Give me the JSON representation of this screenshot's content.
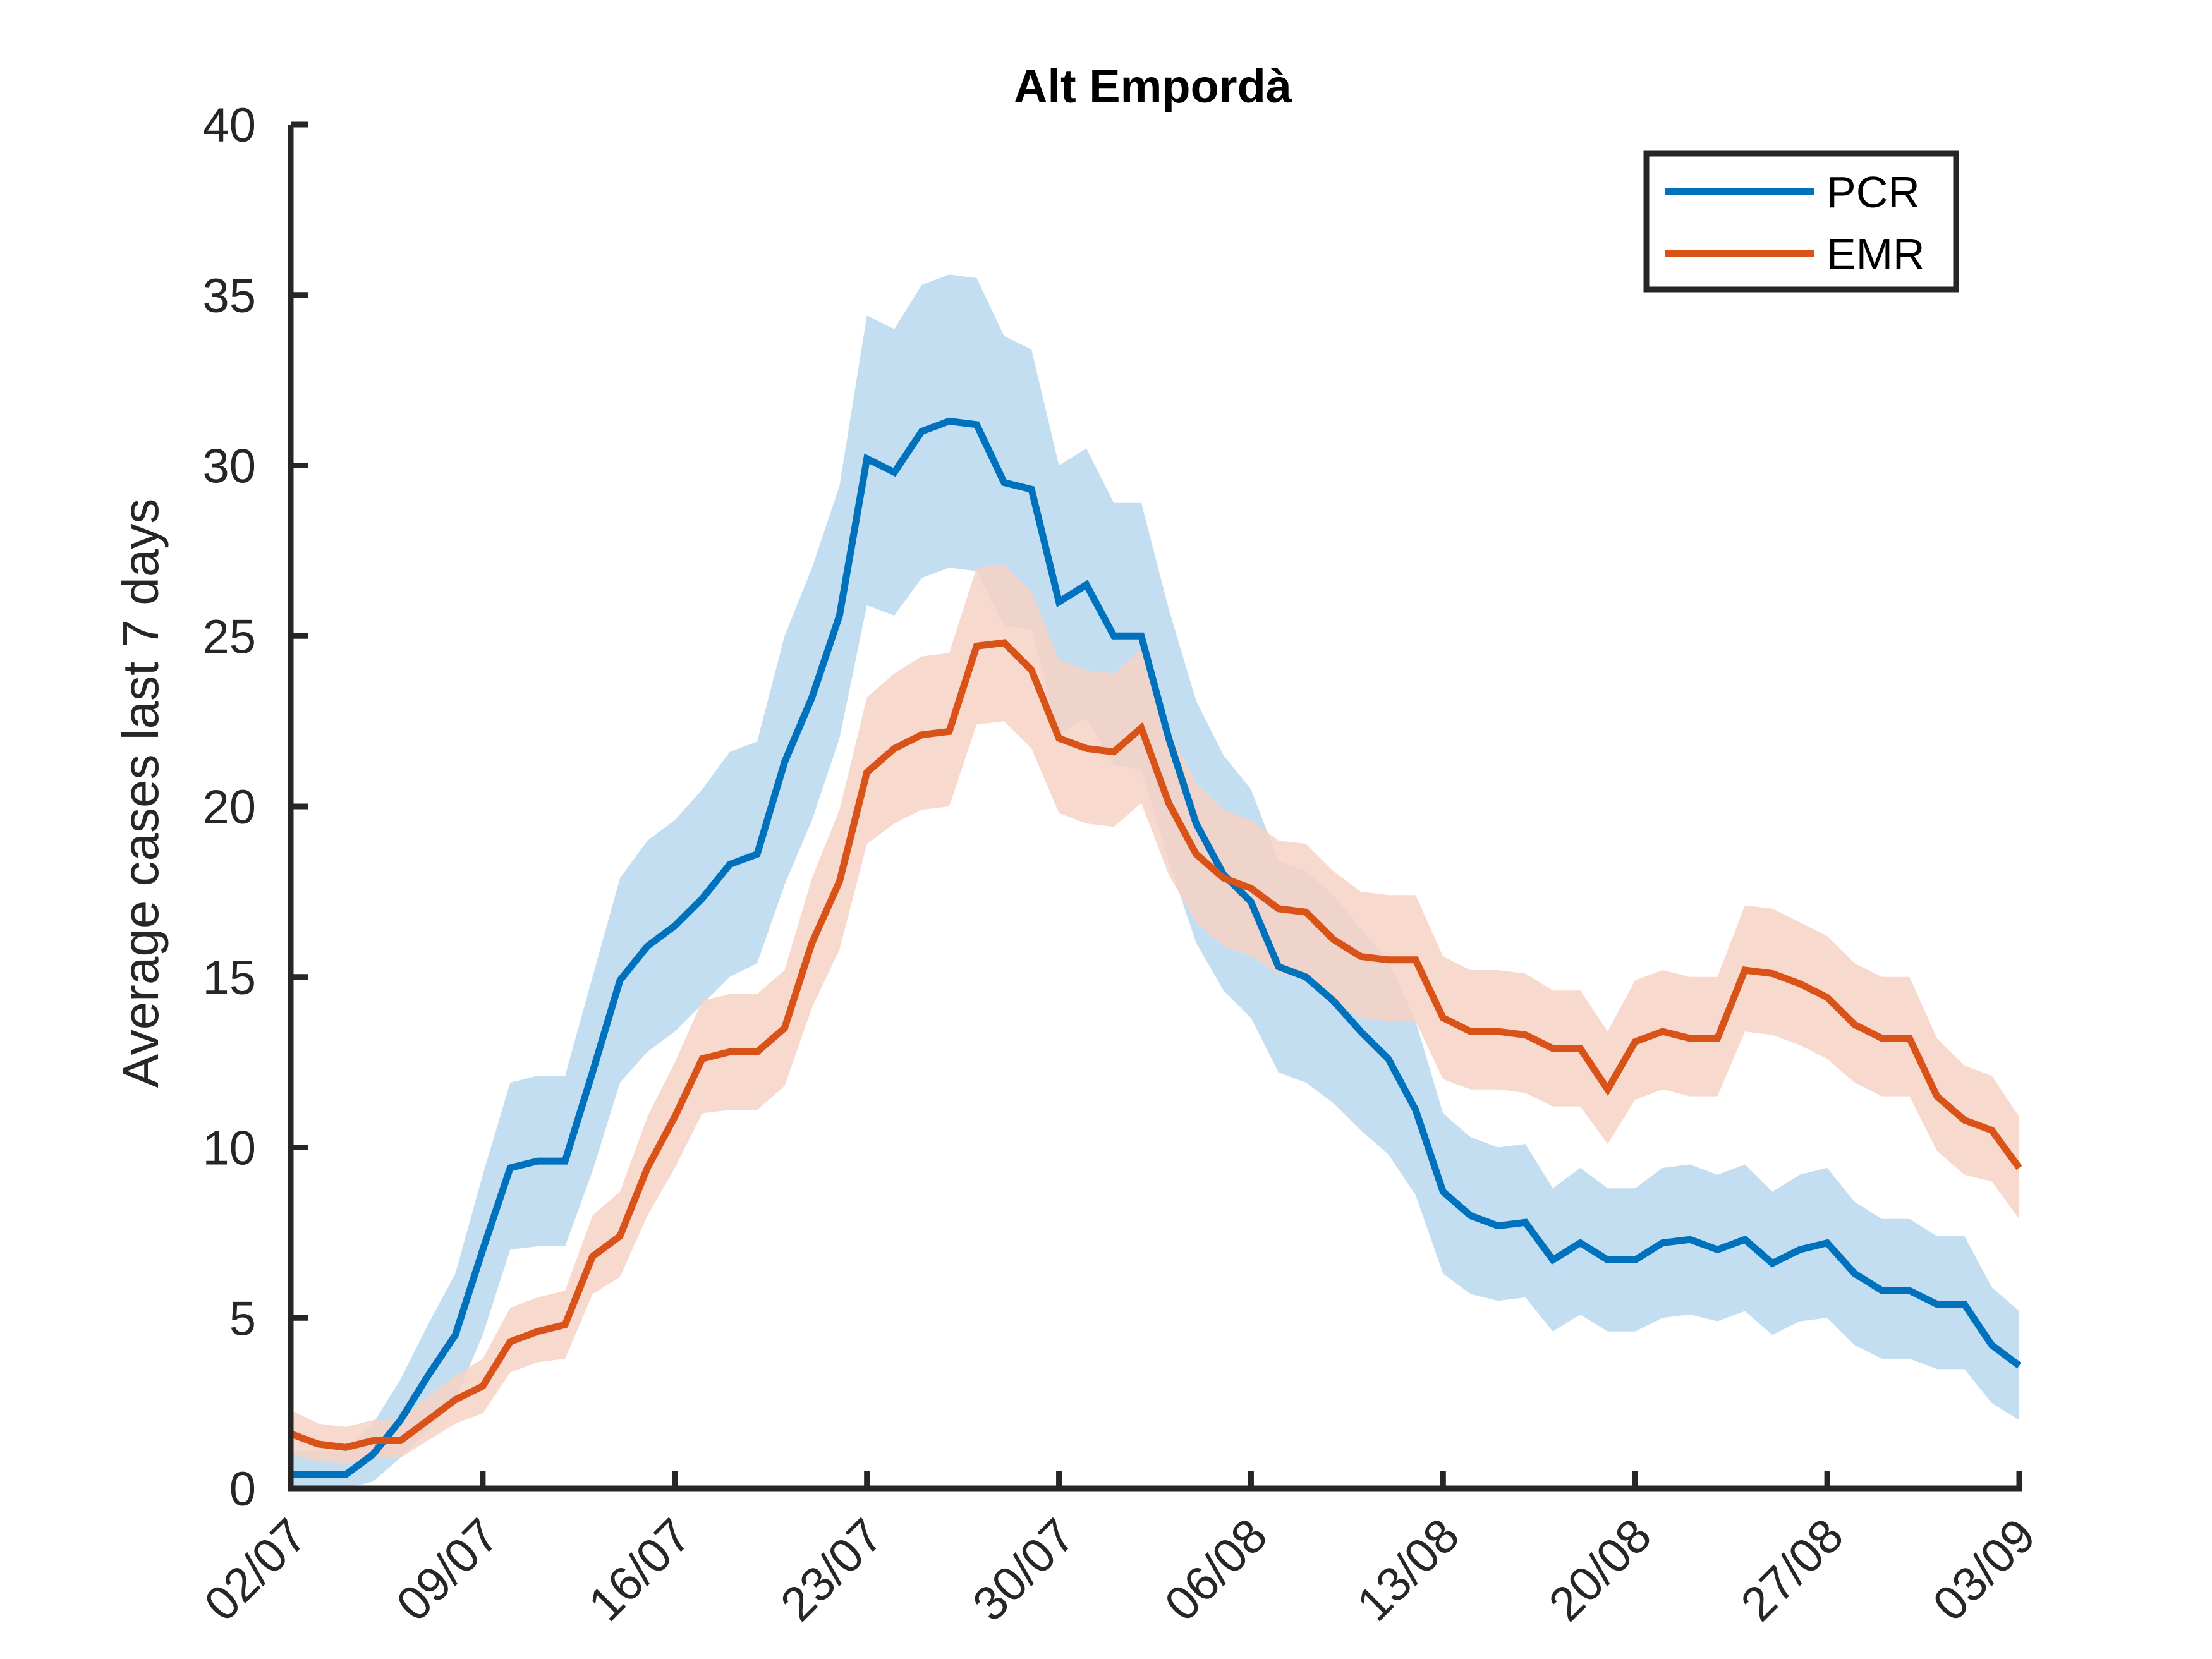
{
  "chart_data": {
    "type": "line",
    "title": "Alt Empordà",
    "xlabel": "",
    "ylabel": "Average cases last 7 days",
    "ylim": [
      0,
      40
    ],
    "yticks": [
      0,
      5,
      10,
      15,
      20,
      25,
      30,
      35,
      40
    ],
    "xticks": [
      "02/07",
      "09/07",
      "16/07",
      "23/07",
      "30/07",
      "06/08",
      "13/08",
      "20/08",
      "27/08",
      "03/09"
    ],
    "x_start": "02/07",
    "x_end": "03/09",
    "legend_position": "top-right",
    "grid": false,
    "series": [
      {
        "name": "PCR",
        "color": "#0072BD",
        "band_color": "#B9D8EE",
        "values": [
          0.4,
          0.4,
          0.4,
          1.0,
          2.0,
          3.3,
          4.5,
          7.0,
          9.4,
          9.6,
          9.6,
          12.2,
          14.9,
          15.9,
          16.5,
          17.3,
          18.3,
          18.6,
          21.3,
          23.2,
          25.6,
          30.2,
          29.8,
          31.0,
          31.3,
          31.2,
          29.5,
          29.3,
          26.0,
          26.5,
          25.0,
          25.0,
          22.0,
          19.5,
          18.0,
          17.2,
          15.3,
          15.0,
          14.3,
          13.4,
          12.6,
          11.1,
          8.7,
          8.0,
          7.7,
          7.8,
          6.7,
          7.2,
          6.7,
          6.7,
          7.2,
          7.3,
          7.0,
          7.3,
          6.6,
          7.0,
          7.2,
          6.3,
          5.8,
          5.8,
          5.4,
          5.4,
          4.2,
          3.6
        ],
        "lower": [
          0.0,
          0.0,
          0.0,
          0.2,
          0.9,
          1.7,
          2.6,
          4.5,
          7.0,
          7.1,
          7.1,
          9.3,
          11.9,
          12.8,
          13.4,
          14.2,
          15.0,
          15.4,
          17.7,
          19.6,
          22.0,
          25.9,
          25.6,
          26.7,
          27.0,
          26.9,
          25.3,
          25.2,
          22.1,
          22.6,
          21.2,
          21.1,
          18.4,
          16.0,
          14.6,
          13.8,
          12.2,
          11.9,
          11.3,
          10.5,
          9.8,
          8.6,
          6.3,
          5.7,
          5.5,
          5.6,
          4.6,
          5.1,
          4.6,
          4.6,
          5.0,
          5.1,
          4.9,
          5.2,
          4.5,
          4.9,
          5.0,
          4.2,
          3.8,
          3.8,
          3.5,
          3.5,
          2.5,
          2.0
        ],
        "upper": [
          1.1,
          1.1,
          1.1,
          1.9,
          3.2,
          4.8,
          6.3,
          9.2,
          11.9,
          12.1,
          12.1,
          15.0,
          17.9,
          19.0,
          19.6,
          20.5,
          21.6,
          21.9,
          25.0,
          27.0,
          29.4,
          34.4,
          34.0,
          35.3,
          35.6,
          35.5,
          33.8,
          33.4,
          30.0,
          30.5,
          28.9,
          28.9,
          25.8,
          23.1,
          21.5,
          20.5,
          18.4,
          18.1,
          17.4,
          16.4,
          15.5,
          13.7,
          11.0,
          10.3,
          10.0,
          10.1,
          8.8,
          9.4,
          8.8,
          8.8,
          9.4,
          9.5,
          9.2,
          9.5,
          8.7,
          9.2,
          9.4,
          8.4,
          7.9,
          7.9,
          7.4,
          7.4,
          5.9,
          5.2
        ]
      },
      {
        "name": "EMR",
        "color": "#D95319",
        "band_color": "#F6D2C4",
        "values": [
          1.6,
          1.3,
          1.2,
          1.4,
          1.4,
          2.0,
          2.6,
          3.0,
          4.3,
          4.6,
          4.8,
          6.8,
          7.4,
          9.4,
          10.9,
          12.6,
          12.8,
          12.8,
          13.5,
          16.0,
          17.8,
          21.0,
          21.7,
          22.1,
          22.2,
          24.7,
          24.8,
          24.0,
          22.0,
          21.7,
          21.6,
          22.3,
          20.1,
          18.6,
          17.9,
          17.6,
          17.0,
          16.9,
          16.1,
          15.6,
          15.5,
          15.5,
          13.8,
          13.4,
          13.4,
          13.3,
          12.9,
          12.9,
          11.7,
          13.1,
          13.4,
          13.2,
          13.2,
          15.2,
          15.1,
          14.8,
          14.4,
          13.6,
          13.2,
          13.2,
          11.5,
          10.8,
          10.5,
          9.4
        ],
        "lower": [
          1.0,
          0.8,
          0.7,
          0.9,
          0.9,
          1.4,
          1.9,
          2.2,
          3.4,
          3.7,
          3.8,
          5.7,
          6.2,
          8.0,
          9.4,
          11.0,
          11.1,
          11.1,
          11.8,
          14.1,
          15.8,
          18.9,
          19.5,
          19.9,
          20.0,
          22.4,
          22.5,
          21.7,
          19.8,
          19.5,
          19.4,
          20.1,
          18.0,
          16.6,
          15.9,
          15.6,
          15.1,
          15.0,
          14.2,
          13.8,
          13.7,
          13.7,
          12.0,
          11.7,
          11.7,
          11.6,
          11.2,
          11.2,
          10.1,
          11.4,
          11.7,
          11.5,
          11.5,
          13.4,
          13.3,
          13.0,
          12.6,
          11.9,
          11.5,
          11.5,
          9.9,
          9.2,
          9.0,
          7.9
        ],
        "upper": [
          2.3,
          1.9,
          1.8,
          2.0,
          2.0,
          2.7,
          3.3,
          3.8,
          5.3,
          5.6,
          5.8,
          8.0,
          8.7,
          10.9,
          12.5,
          14.3,
          14.5,
          14.5,
          15.2,
          17.9,
          19.9,
          23.2,
          23.9,
          24.4,
          24.5,
          27.0,
          27.1,
          26.3,
          24.3,
          24.0,
          23.9,
          24.6,
          22.2,
          20.7,
          19.9,
          19.6,
          19.0,
          18.9,
          18.1,
          17.5,
          17.4,
          17.4,
          15.6,
          15.2,
          15.2,
          15.1,
          14.6,
          14.6,
          13.4,
          14.9,
          15.2,
          15.0,
          15.0,
          17.1,
          17.0,
          16.6,
          16.2,
          15.4,
          15.0,
          15.0,
          13.2,
          12.4,
          12.1,
          10.9
        ]
      }
    ]
  }
}
